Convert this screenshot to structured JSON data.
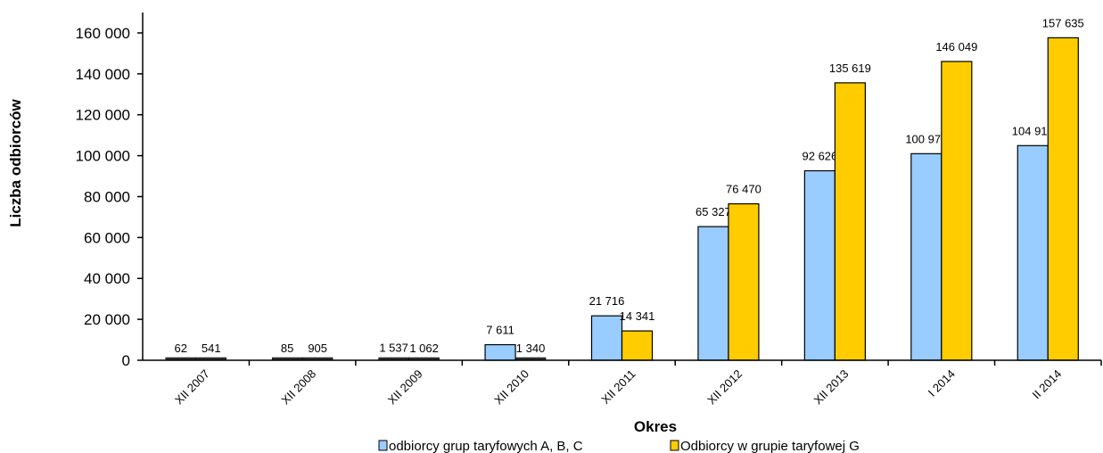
{
  "chart_data": {
    "type": "bar",
    "title": "",
    "xlabel": "Okres",
    "ylabel": "Liczba odbiorców",
    "ylim": [
      0,
      170000
    ],
    "yticks": [
      0,
      20000,
      40000,
      60000,
      80000,
      100000,
      120000,
      140000,
      160000
    ],
    "ytick_labels": [
      "0",
      "20 000",
      "40 000",
      "60 000",
      "80 000",
      "100 000",
      "120 000",
      "140 000",
      "160 000"
    ],
    "categories": [
      "XII 2007",
      "XII 2008",
      "XII 2009",
      "XII 2010",
      "XII 2011",
      "XII 2012",
      "XII 2013",
      "I 2014",
      "II 2014"
    ],
    "series": [
      {
        "name": "odbiorcy grup taryfowych A, B, C",
        "color": "#99CCFF",
        "values": [
          62,
          85,
          1537,
          7611,
          21716,
          65327,
          92626,
          100978,
          104916
        ],
        "labels": [
          "62",
          "85",
          "1 537",
          "7 611",
          "21 716",
          "65 327",
          "92 626",
          "100 978",
          "104 916"
        ]
      },
      {
        "name": "Odbiorcy w grupie taryfowej G",
        "color": "#FFCC00",
        "values": [
          541,
          905,
          1062,
          1340,
          14341,
          76470,
          135619,
          146049,
          157635
        ],
        "labels": [
          "541",
          "905",
          "1 062",
          "1 340",
          "14 341",
          "76 470",
          "135 619",
          "146 049",
          "157 635"
        ]
      }
    ],
    "grid": false,
    "legend_position": "bottom"
  }
}
